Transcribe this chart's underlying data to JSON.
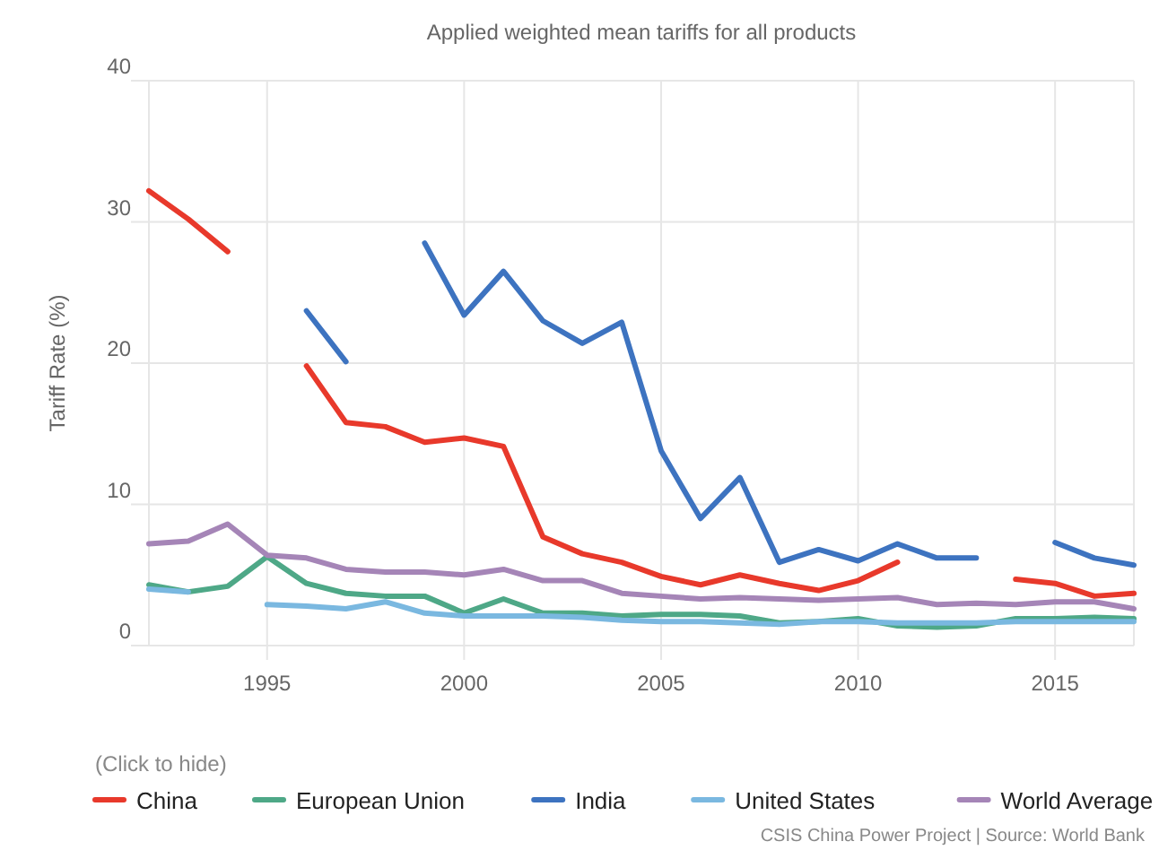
{
  "chart_data": {
    "type": "line",
    "title": "Applied weighted mean tariffs for all products",
    "ylabel": "Tariff Rate (%)",
    "legend_title": "(Click to hide)",
    "annotations": [
      "CSIS China Power Project | Source: World Bank"
    ],
    "x": [
      1992,
      1993,
      1994,
      1995,
      1996,
      1997,
      1998,
      1999,
      2000,
      2001,
      2002,
      2003,
      2004,
      2005,
      2006,
      2007,
      2008,
      2009,
      2010,
      2011,
      2012,
      2013,
      2014,
      2015,
      2016,
      2017
    ],
    "series": [
      {
        "name": "China",
        "color": "#e8392b",
        "values": [
          32.2,
          30.2,
          27.9,
          null,
          19.8,
          15.8,
          15.5,
          14.4,
          14.7,
          14.1,
          7.7,
          6.5,
          5.9,
          4.9,
          4.3,
          5.0,
          4.4,
          3.9,
          4.6,
          5.9,
          null,
          null,
          4.7,
          4.4,
          3.5,
          3.7
        ]
      },
      {
        "name": "European Union",
        "color": "#4ea887",
        "values": [
          4.3,
          3.8,
          4.2,
          6.3,
          4.4,
          3.7,
          3.5,
          3.5,
          2.3,
          3.3,
          2.3,
          2.3,
          2.1,
          2.2,
          2.2,
          2.1,
          1.6,
          1.7,
          1.9,
          1.4,
          1.3,
          1.4,
          1.9,
          1.9,
          2.0,
          1.9
        ]
      },
      {
        "name": "India",
        "color": "#3d73c0",
        "values": [
          null,
          null,
          null,
          null,
          23.7,
          20.1,
          null,
          28.5,
          23.4,
          26.5,
          23.0,
          21.4,
          22.9,
          13.8,
          9.0,
          11.9,
          5.9,
          6.8,
          6.0,
          7.2,
          6.2,
          6.2,
          null,
          7.3,
          6.2,
          5.7
        ]
      },
      {
        "name": "United States",
        "color": "#7ab8e0",
        "values": [
          4.0,
          3.8,
          null,
          2.9,
          2.8,
          2.6,
          3.1,
          2.3,
          2.1,
          2.1,
          2.1,
          2.0,
          1.8,
          1.7,
          1.7,
          1.6,
          1.5,
          1.7,
          1.7,
          1.6,
          1.6,
          1.6,
          1.7,
          1.7,
          1.7,
          1.7
        ]
      },
      {
        "name": "World Average",
        "color": "#a585b7",
        "values": [
          7.2,
          7.4,
          8.6,
          6.4,
          6.2,
          5.4,
          5.2,
          5.2,
          5.0,
          5.4,
          4.6,
          4.6,
          3.7,
          3.5,
          3.3,
          3.4,
          3.3,
          3.2,
          3.3,
          3.4,
          2.9,
          3.0,
          2.9,
          3.1,
          3.1,
          2.6
        ]
      }
    ],
    "xlim": [
      1992,
      2017
    ],
    "xticks": [
      1995,
      2000,
      2005,
      2010,
      2015
    ],
    "ylim": [
      0,
      40
    ],
    "yticks": [
      0,
      10,
      20,
      30,
      40
    ],
    "grid": true,
    "legend": "bottom",
    "marker": "none",
    "line_style": "solid"
  }
}
